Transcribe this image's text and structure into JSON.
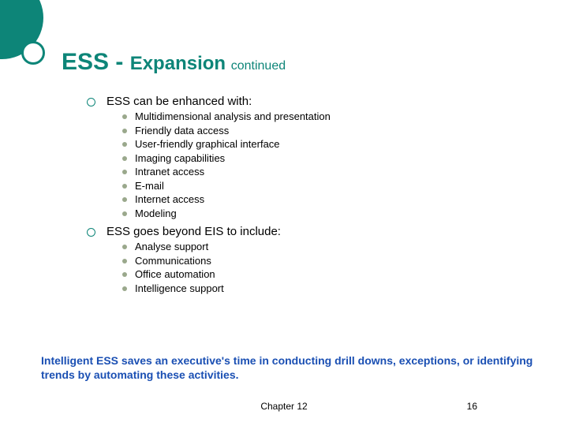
{
  "colors": {
    "accent": "#0d8578",
    "bullet_l2": "#9aa88c",
    "callout": "#1a4fb3"
  },
  "title": {
    "main": "ESS - ",
    "sub": "Expansion ",
    "cont": "continued"
  },
  "sections": [
    {
      "heading": "ESS can be enhanced with:",
      "items": [
        "Multidimensional analysis and presentation",
        "Friendly data access",
        "User-friendly graphical interface",
        "Imaging capabilities",
        "Intranet access",
        "E-mail",
        "Internet access",
        "Modeling"
      ]
    },
    {
      "heading": "ESS goes beyond EIS to include:",
      "items": [
        "Analyse support",
        "Communications",
        "Office automation",
        "Intelligence support"
      ]
    }
  ],
  "callout": "Intelligent ESS saves an executive's time in conducting drill downs, exceptions, or identifying trends by automating these activities.",
  "footer": {
    "center": "Chapter 12",
    "page": "16"
  }
}
